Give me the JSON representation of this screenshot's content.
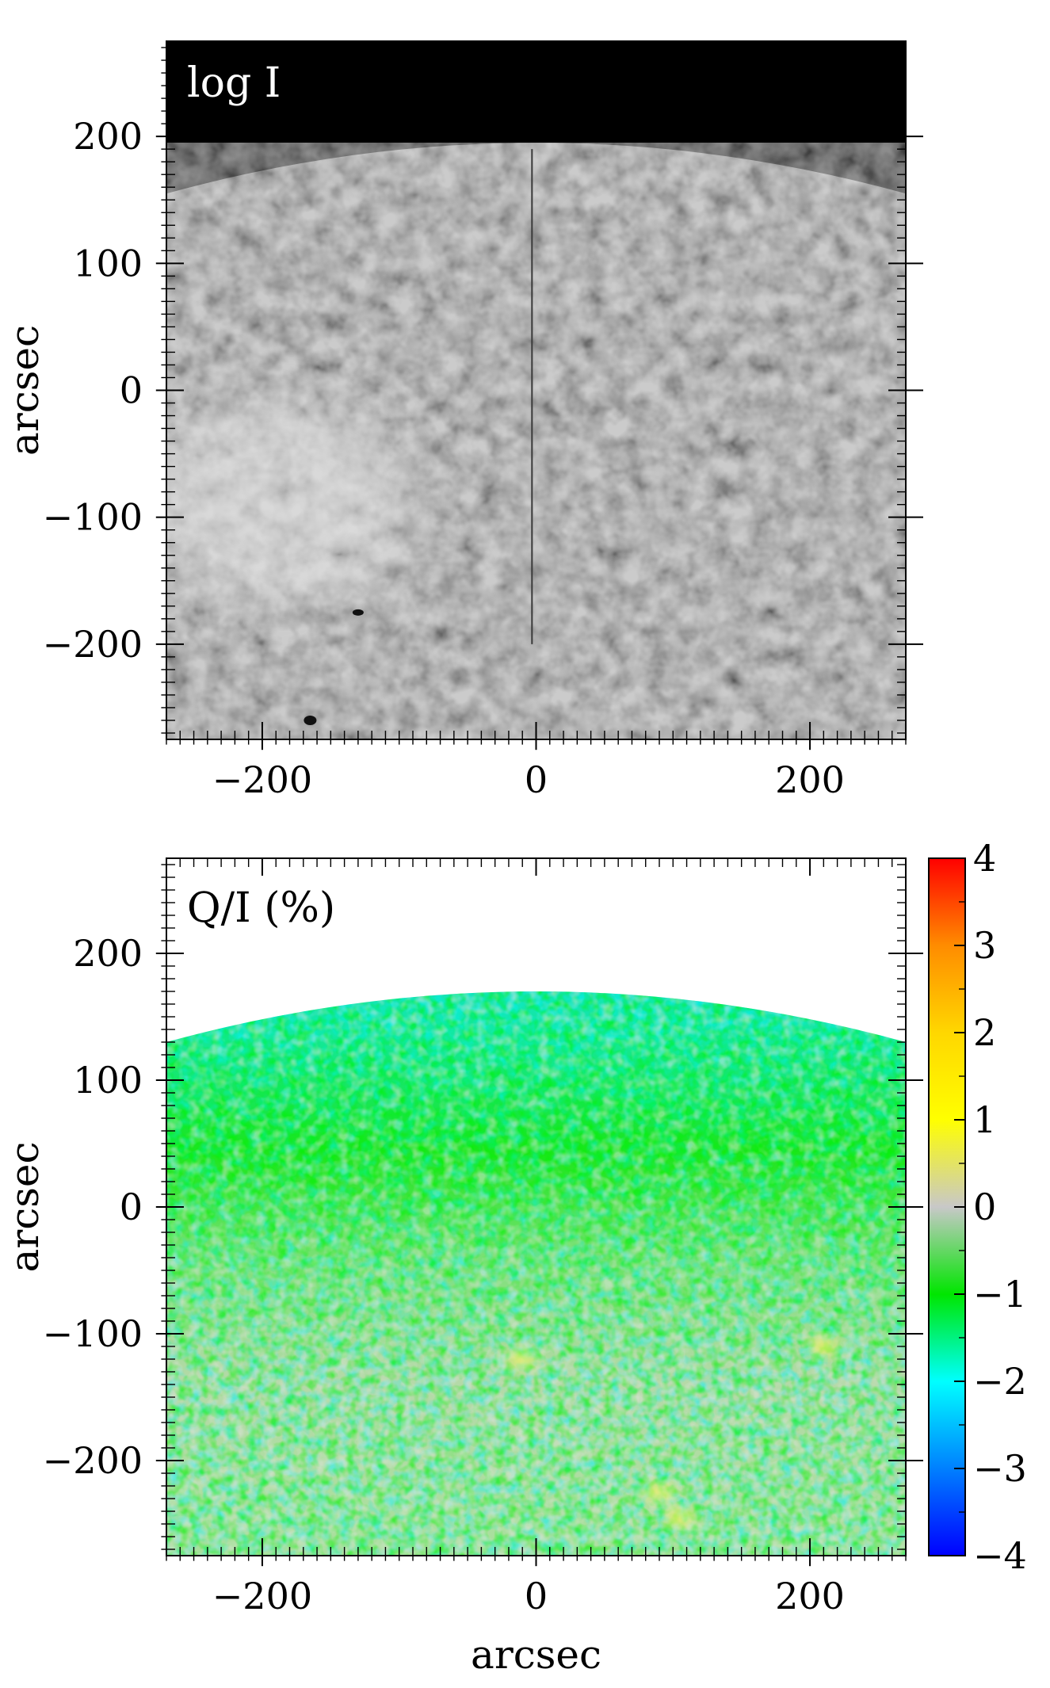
{
  "chart_data": [
    {
      "type": "heatmap",
      "title": "",
      "panel_label": "log I",
      "xlabel": "",
      "ylabel": "arcsec",
      "xlim": [
        -270,
        270
      ],
      "ylim": [
        -275,
        275
      ],
      "xticks": [
        -200,
        0,
        200
      ],
      "yticks": [
        -200,
        -100,
        0,
        100,
        200
      ],
      "xtick_labels": [
        "−200",
        "0",
        "200"
      ],
      "ytick_labels": [
        "−200",
        "−100",
        "0",
        "100",
        "200"
      ],
      "colormap": "grayscale",
      "limb_y_at_center": 195,
      "limb_y_at_edges": 155,
      "features": {
        "background_above_limb": "#000000",
        "disk_base": "#8c8c8c",
        "bright_region_center": [
          -190,
          -90
        ],
        "dark_spots": [
          [
            -130,
            -175
          ],
          [
            -165,
            -260
          ]
        ],
        "vertical_line_x": -3,
        "vertical_line_yrange": [
          -200,
          190
        ]
      }
    },
    {
      "type": "heatmap",
      "title": "",
      "panel_label": "Q/I (%)",
      "xlabel": "arcsec",
      "ylabel": "arcsec",
      "xlim": [
        -270,
        270
      ],
      "ylim": [
        -275,
        275
      ],
      "xticks": [
        -200,
        0,
        200
      ],
      "yticks": [
        -200,
        -100,
        0,
        100,
        200
      ],
      "xtick_labels": [
        "−200",
        "0",
        "200"
      ],
      "ytick_labels": [
        "−200",
        "−100",
        "0",
        "100",
        "200"
      ],
      "limb_y_at_center": 170,
      "limb_y_at_edges": 130,
      "colorbar": {
        "min": -4,
        "max": 4,
        "ticks": [
          4,
          3,
          2,
          1,
          0,
          -1,
          -2,
          -3,
          -4
        ],
        "tick_labels": [
          "4",
          "3",
          "2",
          "1",
          "0",
          "−1",
          "−2",
          "−3",
          "−4"
        ],
        "colors": [
          "#ff0000",
          "#ff8c00",
          "#ffd700",
          "#ffff00",
          "#c8c8c8",
          "#00e600",
          "#00ffff",
          "#0080ff",
          "#0000ff"
        ]
      },
      "features": {
        "upper_region_color": "#00e6ff",
        "middle_region_color": "#00e600",
        "lower_region_color": "#c0c0c0",
        "yellow_patches": [
          [
            -10,
            -120
          ],
          [
            90,
            -225
          ],
          [
            105,
            -245
          ],
          [
            210,
            -110
          ]
        ]
      }
    }
  ]
}
